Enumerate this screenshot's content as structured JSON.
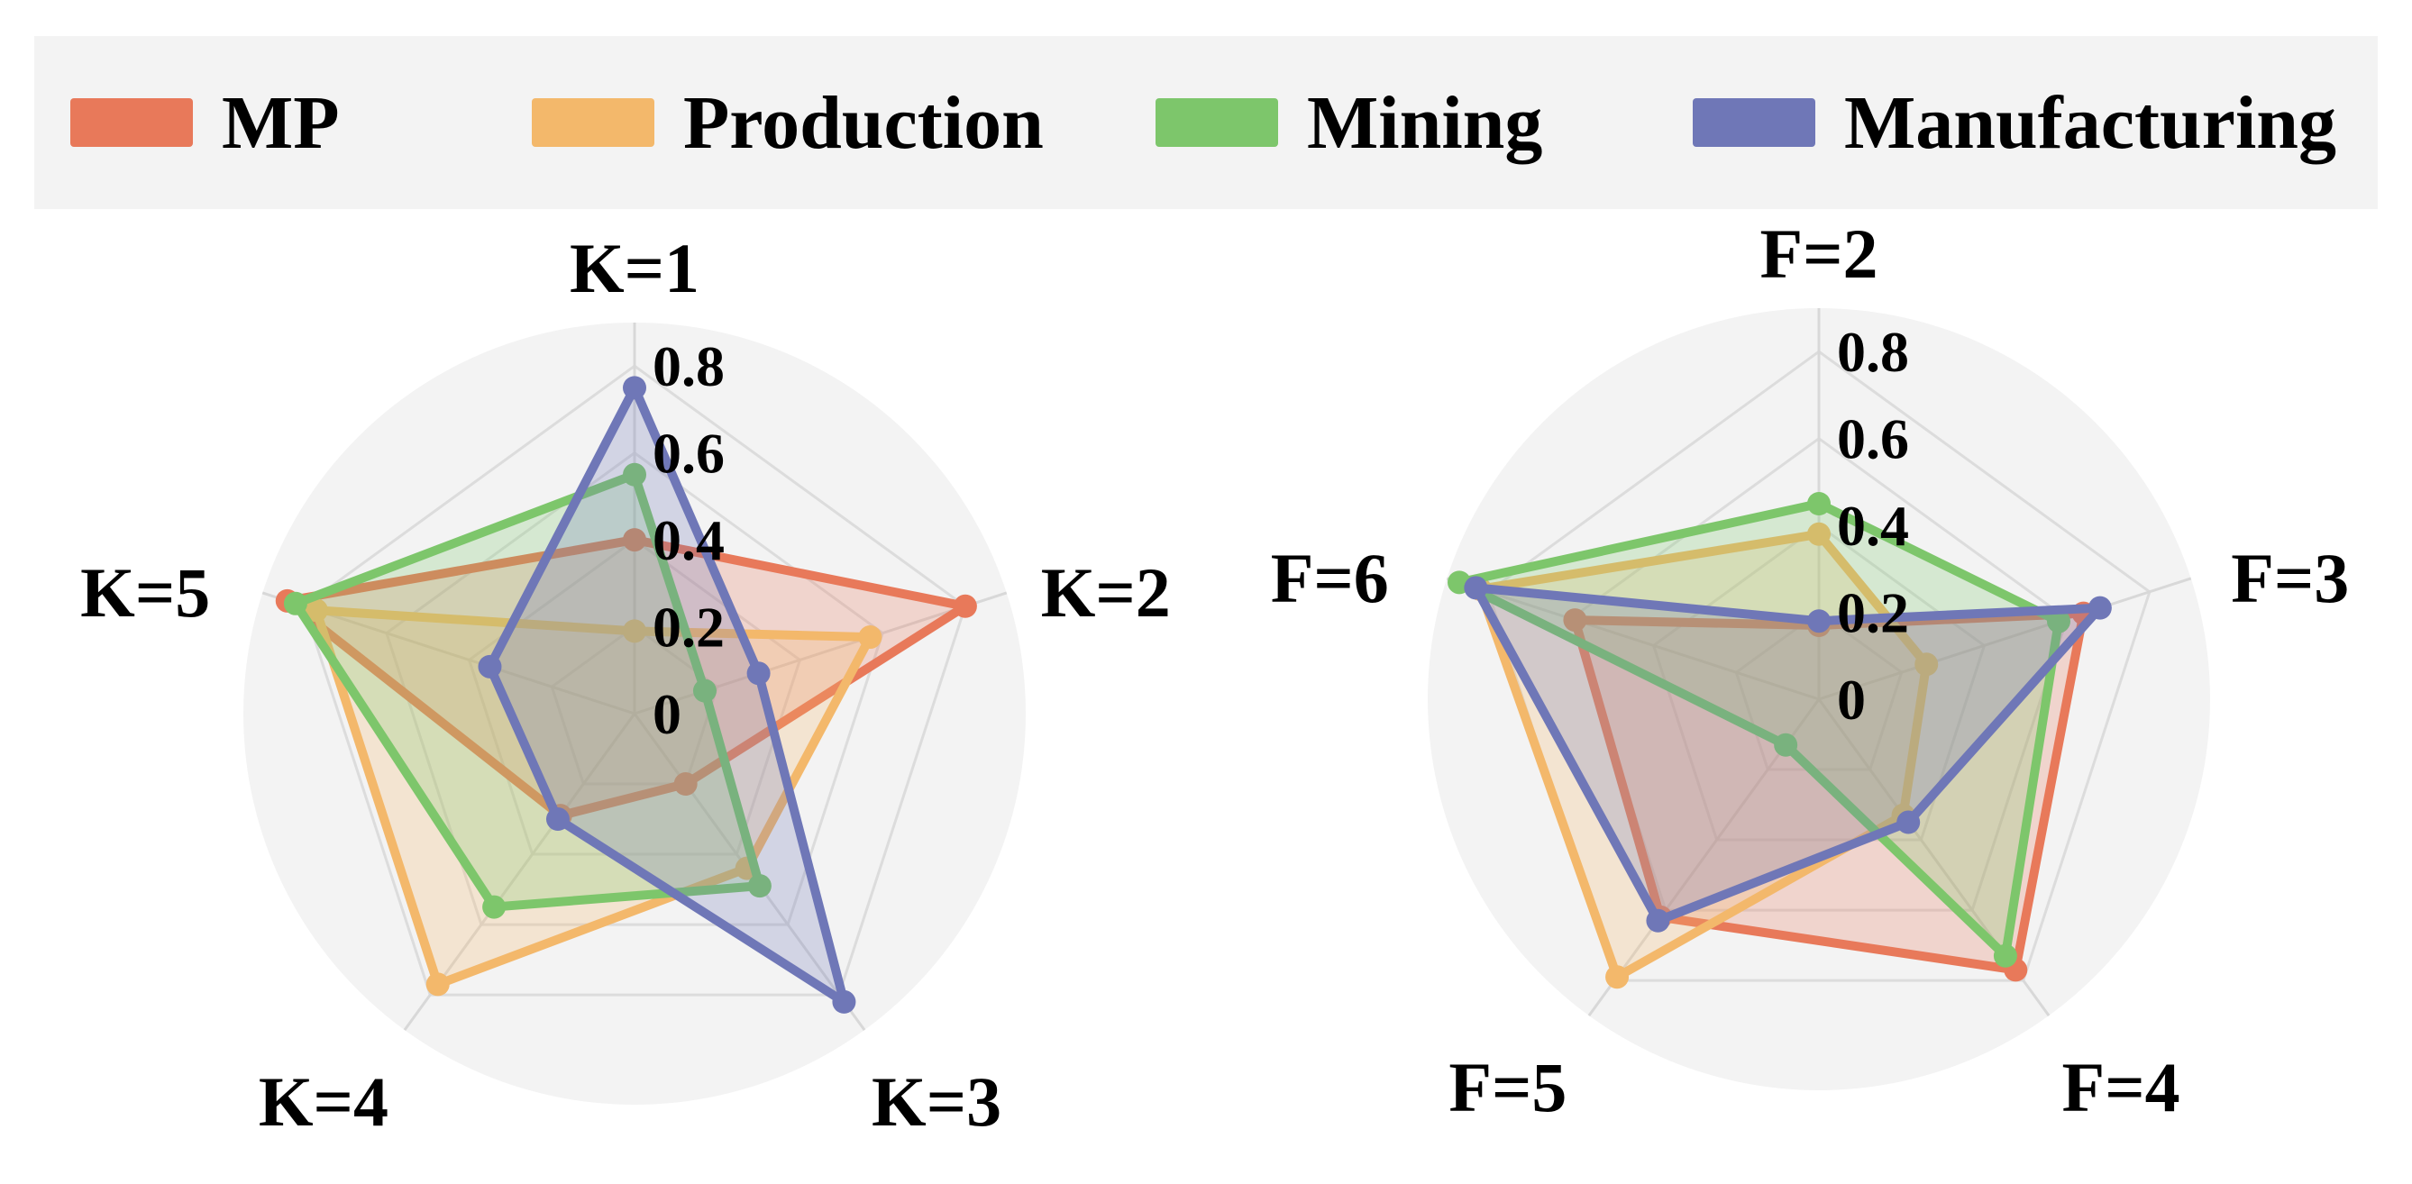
{
  "legend": {
    "items": [
      {
        "label": "MP",
        "color": "#e8795a"
      },
      {
        "label": "Production",
        "color": "#f3b86b"
      },
      {
        "label": "Mining",
        "color": "#7dc66b"
      },
      {
        "label": "Manufacturing",
        "color": "#6f77b7"
      }
    ]
  },
  "chart_data": [
    {
      "type": "radar",
      "title": "",
      "axes": [
        "K=1",
        "K=2",
        "K=3",
        "K=4",
        "K=5"
      ],
      "rlim": [
        0,
        0.9
      ],
      "rticks": [
        0,
        0.2,
        0.4,
        0.6,
        0.8
      ],
      "rtick_labels": [
        "0",
        "0.2",
        "0.4",
        "0.6",
        "0.8"
      ],
      "series": [
        {
          "name": "MP",
          "values": [
            0.4,
            0.8,
            0.2,
            0.29,
            0.84
          ]
        },
        {
          "name": "Production",
          "values": [
            0.19,
            0.57,
            0.44,
            0.77,
            0.77
          ]
        },
        {
          "name": "Mining",
          "values": [
            0.55,
            0.17,
            0.49,
            0.55,
            0.82
          ]
        },
        {
          "name": "Manufacturing",
          "values": [
            0.75,
            0.3,
            0.82,
            0.3,
            0.35
          ]
        }
      ]
    },
    {
      "type": "radar",
      "title": "",
      "axes": [
        "F=2",
        "F=3",
        "F=4",
        "F=5",
        "F=6"
      ],
      "rlim": [
        0,
        0.9
      ],
      "rticks": [
        0,
        0.2,
        0.4,
        0.6,
        0.8
      ],
      "rtick_labels": [
        "0",
        "0.2",
        "0.4",
        "0.6",
        "0.8"
      ],
      "series": [
        {
          "name": "MP",
          "values": [
            0.17,
            0.64,
            0.77,
            0.62,
            0.59
          ]
        },
        {
          "name": "Production",
          "values": [
            0.38,
            0.26,
            0.33,
            0.79,
            0.82
          ]
        },
        {
          "name": "Mining",
          "values": [
            0.45,
            0.58,
            0.73,
            0.13,
            0.87
          ]
        },
        {
          "name": "Manufacturing",
          "values": [
            0.18,
            0.68,
            0.35,
            0.63,
            0.83
          ]
        }
      ]
    }
  ]
}
